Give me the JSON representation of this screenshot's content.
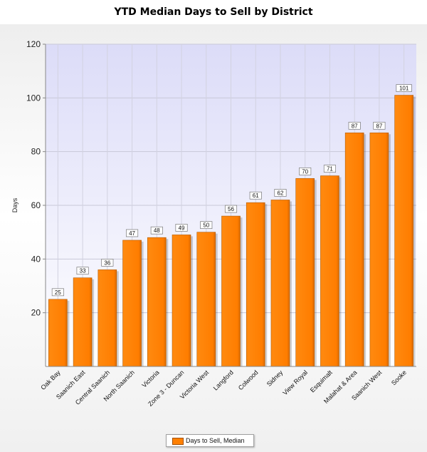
{
  "chart_data": {
    "type": "bar",
    "title": "YTD Median Days to Sell by District",
    "ylabel": "Days",
    "xlabel": "",
    "ylim": [
      0,
      120
    ],
    "yticks": [
      20,
      40,
      60,
      80,
      100,
      120
    ],
    "grid": true,
    "legend_position": "bottom-center",
    "categories": [
      "Oak Bay",
      "Saanich East",
      "Central Saanich",
      "North Saanich",
      "Victoria",
      "Zone 3 - Duncan",
      "Victoria West",
      "Langford",
      "Colwood",
      "Sidney",
      "View Royal",
      "Esquimalt",
      "Malahat & Area",
      "Saanich West",
      "Sooke"
    ],
    "series": [
      {
        "name": "Days to Sell, Median",
        "values": [
          25,
          33,
          36,
          47,
          48,
          49,
          50,
          56,
          61,
          62,
          70,
          71,
          87,
          87,
          101
        ],
        "color": "#ff8000"
      }
    ]
  }
}
